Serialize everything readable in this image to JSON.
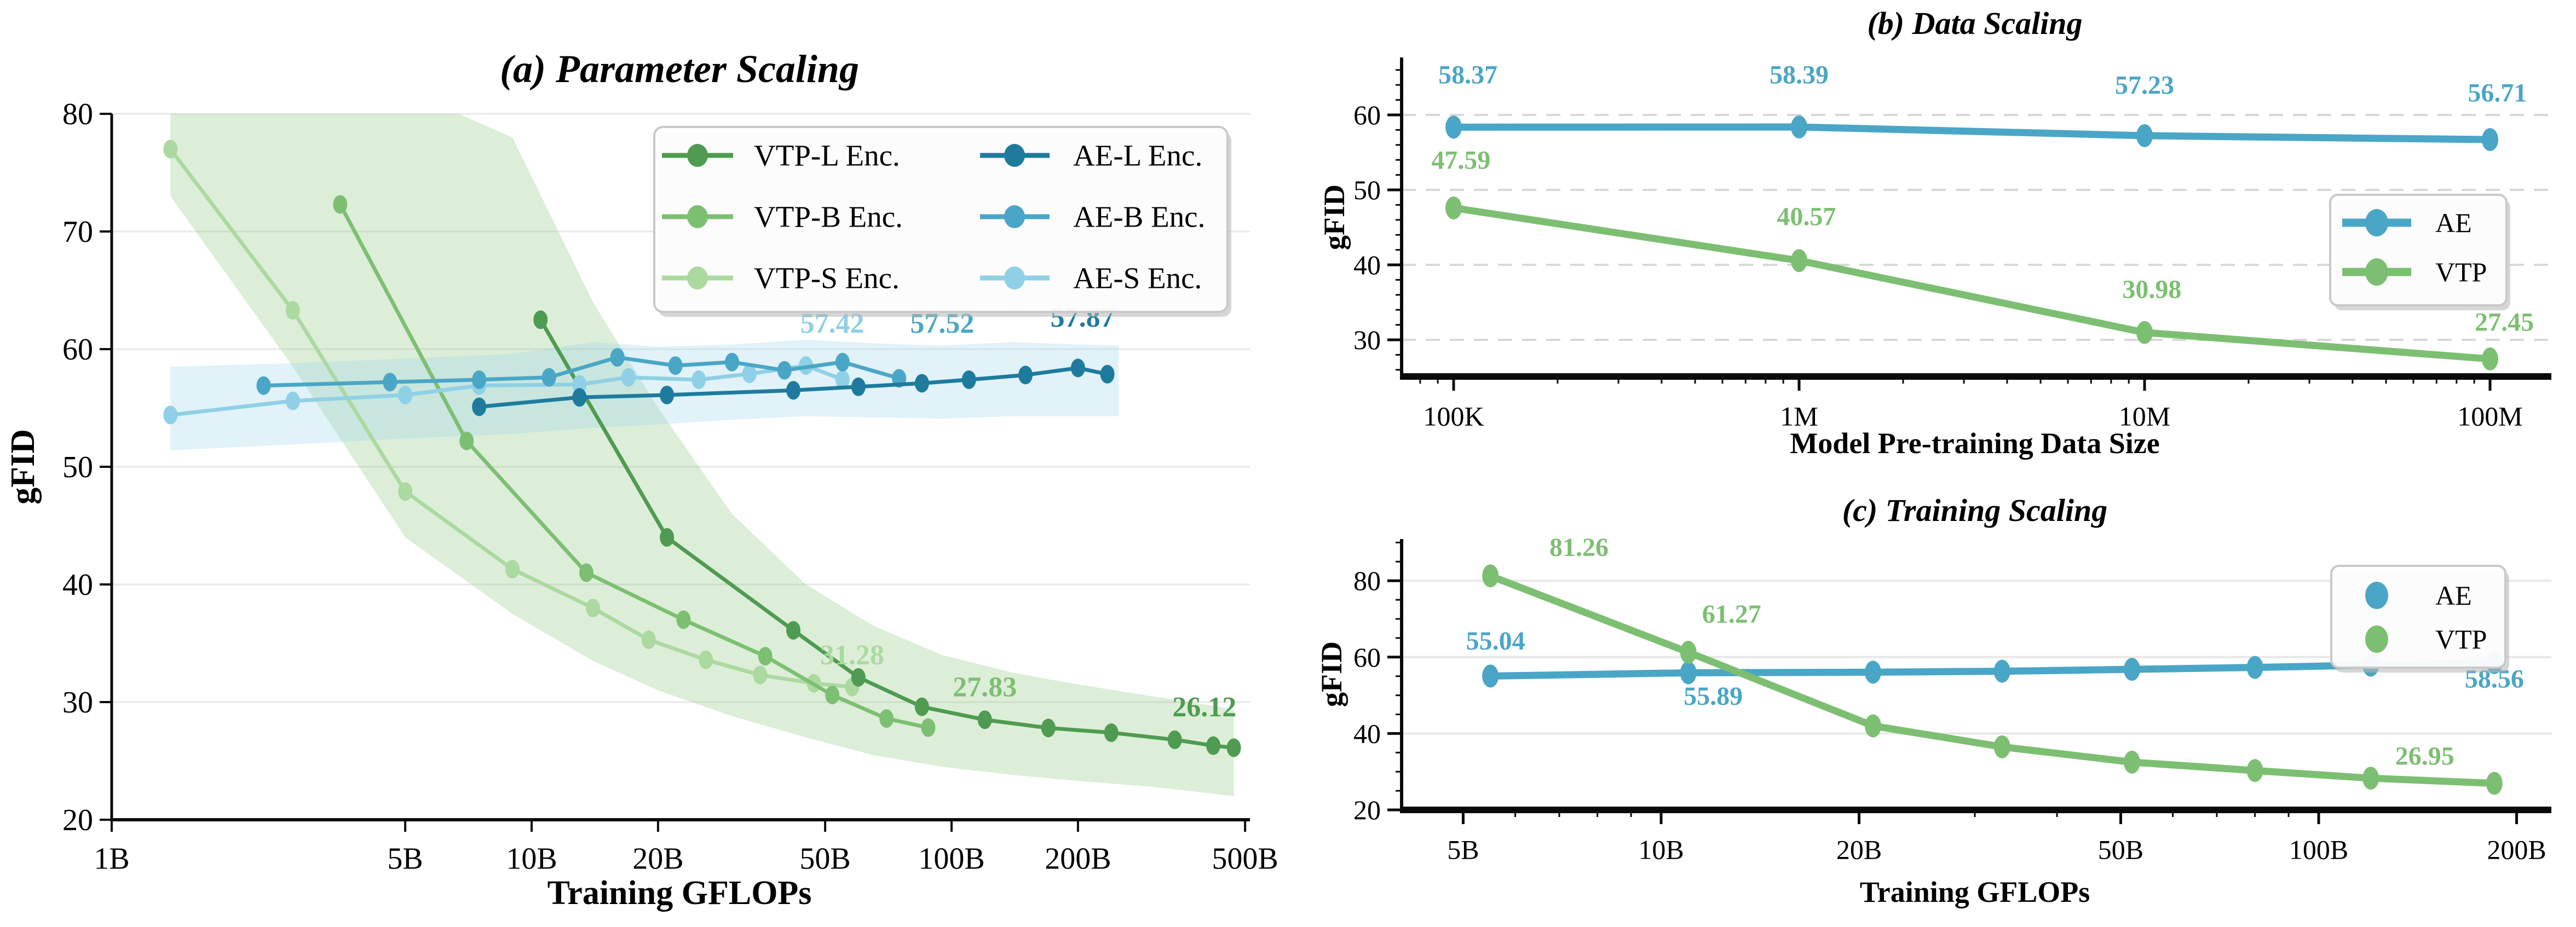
{
  "colors": {
    "vtp_l": "#4f9b51",
    "vtp_b": "#7dbf72",
    "vtp_s": "#abd9a0",
    "ae_l": "#1e7b9e",
    "ae_b": "#4aa6c6",
    "ae_s": "#8fd0e6",
    "band_green": "#8cc87e",
    "band_blue": "#9ad3ea",
    "grid": "#e8e8e8",
    "grid_dash": "#d8d8d8",
    "spine": "#0a0a0a",
    "legend_border": "#c9c9c9",
    "legend_shadow": "#b5b5b5",
    "title_text": "#000000"
  },
  "chart_data": [
    {
      "id": "a",
      "type": "line",
      "title": "(a) Parameter Scaling",
      "xlabel": "Training GFLOPs",
      "ylabel": "gFID",
      "x_scale": "log",
      "xlim_B": [
        1,
        501
      ],
      "ylim": [
        20,
        80
      ],
      "x_ticks": [
        {
          "v": 1,
          "label": "1B"
        },
        {
          "v": 5,
          "label": "5B"
        },
        {
          "v": 10,
          "label": "10B"
        },
        {
          "v": 20,
          "label": "20B"
        },
        {
          "v": 50,
          "label": "50B"
        },
        {
          "v": 100,
          "label": "100B"
        },
        {
          "v": 200,
          "label": "200B"
        },
        {
          "v": 500,
          "label": "500B"
        }
      ],
      "y_ticks": [
        20,
        30,
        40,
        50,
        60,
        70,
        80
      ],
      "grid_values": [
        30,
        40,
        50,
        60,
        70,
        80
      ],
      "grid_style": "solid",
      "legend": {
        "position": "upper-right",
        "columns": 2,
        "items": [
          {
            "label": "VTP-L Enc.",
            "color_key": "vtp_l",
            "marker": "line-dot"
          },
          {
            "label": "VTP-B Enc.",
            "color_key": "vtp_b",
            "marker": "line-dot"
          },
          {
            "label": "VTP-S Enc.",
            "color_key": "vtp_s",
            "marker": "line-dot"
          },
          {
            "label": "AE-L Enc.",
            "color_key": "ae_l",
            "marker": "line-dot"
          },
          {
            "label": "AE-B Enc.",
            "color_key": "ae_b",
            "marker": "line-dot"
          },
          {
            "label": "AE-S Enc.",
            "color_key": "ae_s",
            "marker": "line-dot"
          }
        ]
      },
      "bands": [
        {
          "name": "vtp-band",
          "color_key": "band_green",
          "opacity": 0.3,
          "x": [
            1.38,
            2.7,
            5,
            9,
            14,
            20,
            30,
            45,
            65,
            95,
            140,
            200,
            300,
            400,
            470
          ],
          "upper": [
            88,
            84,
            82,
            78,
            64,
            55,
            46,
            40,
            36.5,
            34,
            32.5,
            31.5,
            30.5,
            29.8,
            29.4
          ],
          "lower": [
            73,
            58.5,
            44,
            37.5,
            33.5,
            31,
            28.8,
            27,
            25.5,
            24.5,
            23.8,
            23.3,
            22.8,
            22.3,
            22
          ]
        },
        {
          "name": "ae-band",
          "color_key": "band_blue",
          "opacity": 0.3,
          "x": [
            1.38,
            2.7,
            5,
            9,
            14,
            20,
            30,
            45,
            65,
            95,
            140,
            200,
            250
          ],
          "upper": [
            58.5,
            58.8,
            59.2,
            59.6,
            60.6,
            60.2,
            60.4,
            60.8,
            60.5,
            60.3,
            60.6,
            60.4,
            60.3
          ],
          "lower": [
            51.4,
            51.9,
            52.4,
            52.8,
            53.3,
            53.6,
            54.0,
            54.3,
            54.2,
            54.1,
            54.3,
            54.3,
            54.3
          ]
        }
      ],
      "series": [
        {
          "name": "VTP-S Enc.",
          "color_key": "vtp_s",
          "x": [
            1.38,
            2.7,
            5,
            9,
            14,
            19,
            26,
            35,
            47,
            58
          ],
          "y": [
            77.0,
            63.3,
            47.9,
            41.3,
            38.0,
            35.3,
            33.6,
            32.3,
            31.6,
            31.28
          ]
        },
        {
          "name": "VTP-B Enc.",
          "color_key": "vtp_b",
          "x": [
            3.5,
            7,
            13.5,
            23,
            36,
            52,
            70,
            88
          ],
          "y": [
            72.3,
            52.2,
            41.0,
            37.0,
            33.9,
            30.6,
            28.6,
            27.83
          ]
        },
        {
          "name": "VTP-L Enc.",
          "color_key": "vtp_l",
          "x": [
            10.5,
            21,
            42,
            60,
            85,
            120,
            170,
            240,
            340,
            420,
            470
          ],
          "y": [
            62.5,
            44.0,
            36.1,
            32.1,
            29.6,
            28.5,
            27.8,
            27.4,
            26.8,
            26.3,
            26.12
          ]
        },
        {
          "name": "AE-S Enc.",
          "color_key": "ae_s",
          "x": [
            1.38,
            2.7,
            5,
            7.5,
            13,
            17,
            25,
            33,
            45,
            55
          ],
          "y": [
            54.4,
            55.6,
            56.1,
            56.9,
            57.0,
            57.6,
            57.4,
            57.9,
            58.6,
            57.42
          ]
        },
        {
          "name": "AE-B Enc.",
          "color_key": "ae_b",
          "x": [
            2.3,
            4.6,
            7.5,
            11,
            16,
            22,
            30,
            40,
            55,
            75
          ],
          "y": [
            56.9,
            57.2,
            57.4,
            57.6,
            59.3,
            58.6,
            58.9,
            58.2,
            58.9,
            57.52
          ]
        },
        {
          "name": "AE-L Enc.",
          "color_key": "ae_l",
          "x": [
            7.5,
            13,
            21,
            42,
            60,
            85,
            110,
            150,
            200,
            235
          ],
          "y": [
            55.1,
            55.9,
            56.1,
            56.5,
            56.8,
            57.1,
            57.4,
            57.8,
            58.4,
            57.87
          ]
        }
      ],
      "annotations": [
        {
          "label": "57.42",
          "color_key": "ae_s",
          "x": 52,
          "y": 61.4
        },
        {
          "label": "57.52",
          "color_key": "ae_b",
          "x": 95,
          "y": 61.4
        },
        {
          "label": "57.87",
          "color_key": "ae_l",
          "x": 205,
          "y": 61.9
        },
        {
          "label": "31.28",
          "color_key": "vtp_s",
          "x": 58,
          "y": 33.2
        },
        {
          "label": "27.83",
          "color_key": "vtp_b",
          "x": 120,
          "y": 30.5
        },
        {
          "label": "26.12",
          "color_key": "vtp_l",
          "x": 400,
          "y": 28.8
        }
      ]
    },
    {
      "id": "b",
      "type": "line",
      "title": "(b) Data Scaling",
      "xlabel": "Model Pre-training Data Size",
      "ylabel": "gFID",
      "x_scale": "log",
      "xlim": [
        71000,
        145000000
      ],
      "ylim": [
        25.1,
        67.7
      ],
      "x_ticks": [
        {
          "v": 100000,
          "label": "100K"
        },
        {
          "v": 1000000,
          "label": "1M"
        },
        {
          "v": 10000000,
          "label": "10M"
        },
        {
          "v": 100000000,
          "label": "100M"
        }
      ],
      "y_ticks": [
        30,
        40,
        50,
        60
      ],
      "grid_values": [
        30,
        40,
        50,
        60
      ],
      "grid_style": "dashed",
      "legend": {
        "position": "center-right",
        "columns": 1,
        "items": [
          {
            "label": "AE",
            "color_key": "ae_b",
            "marker": "line-dot"
          },
          {
            "label": "VTP",
            "color_key": "vtp_b",
            "marker": "line-dot"
          }
        ]
      },
      "bands": [],
      "series": [
        {
          "name": "AE",
          "color_key": "ae_b",
          "x": [
            100000,
            1000000,
            10000000,
            100000000
          ],
          "y": [
            58.37,
            58.39,
            57.23,
            56.71
          ]
        },
        {
          "name": "VTP",
          "color_key": "vtp_b",
          "x": [
            100000,
            1000000,
            10000000,
            100000000
          ],
          "y": [
            47.59,
            40.57,
            30.98,
            27.45
          ]
        }
      ],
      "annotations": [
        {
          "label": "58.37",
          "color_key": "ae_b",
          "x": 110000,
          "y": 64.2
        },
        {
          "label": "58.39",
          "color_key": "ae_b",
          "x": 1000000,
          "y": 64.2
        },
        {
          "label": "57.23",
          "color_key": "ae_b",
          "x": 10000000,
          "y": 62.8
        },
        {
          "label": "56.71",
          "color_key": "ae_b",
          "x": 105000000,
          "y": 61.8
        },
        {
          "label": "47.59",
          "color_key": "vtp_b",
          "x": 105000,
          "y": 52.8
        },
        {
          "label": "40.57",
          "color_key": "vtp_b",
          "x": 1050000,
          "y": 45.3
        },
        {
          "label": "30.98",
          "color_key": "vtp_b",
          "x": 10500000,
          "y": 35.6
        },
        {
          "label": "27.45",
          "color_key": "vtp_b",
          "x": 110000000,
          "y": 31.2
        }
      ]
    },
    {
      "id": "c",
      "type": "line",
      "title": "(c) Training Scaling",
      "xlabel": "Training GFLOPs",
      "ylabel": "gFID",
      "x_scale": "log",
      "xlim_B": [
        4.05,
        221
      ],
      "ylim": [
        20,
        90.9
      ],
      "x_ticks": [
        {
          "v": 5,
          "label": "5B"
        },
        {
          "v": 10,
          "label": "10B"
        },
        {
          "v": 20,
          "label": "20B"
        },
        {
          "v": 50,
          "label": "50B"
        },
        {
          "v": 100,
          "label": "100B"
        },
        {
          "v": 200,
          "label": "200B"
        }
      ],
      "y_ticks": [
        20,
        40,
        60,
        80
      ],
      "grid_values": [
        40,
        60,
        80
      ],
      "grid_style": "solid",
      "legend": {
        "position": "upper-right",
        "columns": 1,
        "items": [
          {
            "label": "AE",
            "color_key": "ae_b",
            "marker": "dot"
          },
          {
            "label": "VTP",
            "color_key": "vtp_b",
            "marker": "dot"
          }
        ]
      },
      "bands": [],
      "series": [
        {
          "name": "AE",
          "color_key": "ae_b",
          "x": [
            5.5,
            11,
            21,
            33,
            52,
            80,
            120,
            185
          ],
          "y": [
            55.04,
            55.89,
            56.05,
            56.3,
            56.8,
            57.3,
            57.9,
            58.56
          ]
        },
        {
          "name": "VTP",
          "color_key": "vtp_b",
          "x": [
            5.5,
            11,
            21,
            33,
            52,
            80,
            120,
            185
          ],
          "y": [
            81.26,
            61.27,
            42.0,
            36.5,
            32.5,
            30.3,
            28.3,
            26.95
          ]
        }
      ],
      "annotations": [
        {
          "label": "81.26",
          "color_key": "vtp_b",
          "x": 7.5,
          "y": 86.5
        },
        {
          "label": "61.27",
          "color_key": "vtp_b",
          "x": 12.8,
          "y": 69.0
        },
        {
          "label": "55.04",
          "color_key": "ae_b",
          "x": 5.6,
          "y": 62.0
        },
        {
          "label": "55.89",
          "color_key": "ae_b",
          "x": 12.0,
          "y": 47.5
        },
        {
          "label": "58.56",
          "color_key": "ae_b",
          "x": 185,
          "y": 52.0
        },
        {
          "label": "26.95",
          "color_key": "vtp_b",
          "x": 145,
          "y": 31.8
        }
      ]
    }
  ]
}
